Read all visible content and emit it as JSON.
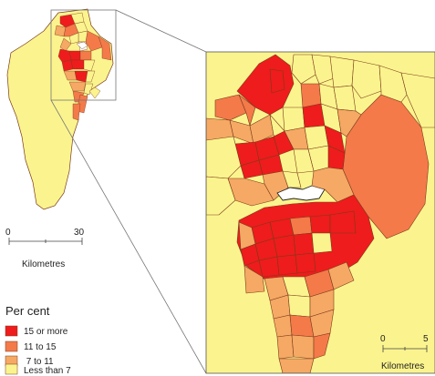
{
  "legend": {
    "title": "Per cent",
    "items": [
      {
        "label": "15 or more",
        "color": "#ee1c1c"
      },
      {
        "label": "11 to 15",
        "color": "#f47a4a"
      },
      {
        "label": " 7 to 11",
        "color": "#f5a964"
      },
      {
        "label": "Less than 7",
        "color": "#fbf48e"
      }
    ]
  },
  "overview_scale": {
    "min_label": "0",
    "max_label": "30",
    "unit": "Kilometres"
  },
  "inset_scale": {
    "min_label": "0",
    "max_label": "5",
    "unit": "Kilometres"
  },
  "colors": {
    "high": "#ee1c1c",
    "mid_high": "#f47a4a",
    "mid_low": "#f5a964",
    "low": "#fbf48e",
    "border": "#7a3a1a",
    "lake": "#ffffff"
  }
}
